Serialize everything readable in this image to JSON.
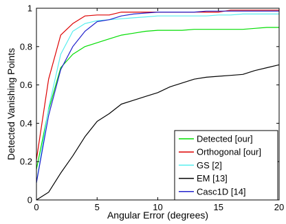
{
  "chart_data": {
    "type": "line",
    "title": "",
    "xlabel": "Angular Error (degrees)",
    "ylabel": "Detected Vanishing Points",
    "xlim": [
      0,
      20
    ],
    "ylim": [
      0,
      1
    ],
    "xticks": [
      0,
      5,
      10,
      15,
      20
    ],
    "yticks": [
      0,
      0.2,
      0.4,
      0.6,
      0.8,
      1
    ],
    "xtick_labels": [
      "0",
      "5",
      "10",
      "15",
      "20"
    ],
    "ytick_labels": [
      "0",
      "0.2",
      "0.4",
      "0.6",
      "0.8",
      "1"
    ],
    "grid": false,
    "legend_position": "bottom-right",
    "series": [
      {
        "name": "Detected [our]",
        "color": "#00dd00",
        "x": [
          0,
          1,
          2,
          3,
          4,
          5,
          6,
          7,
          8,
          9,
          10,
          11,
          12,
          13,
          14,
          15,
          16,
          17,
          18,
          19,
          20
        ],
        "y": [
          0.16,
          0.47,
          0.69,
          0.76,
          0.8,
          0.82,
          0.84,
          0.86,
          0.87,
          0.88,
          0.885,
          0.885,
          0.885,
          0.89,
          0.89,
          0.89,
          0.89,
          0.89,
          0.895,
          0.9,
          0.9
        ]
      },
      {
        "name": "Orthogonal [our]",
        "color": "#dd0000",
        "x": [
          0,
          1,
          2,
          3,
          4,
          5,
          6,
          7,
          8,
          9,
          10,
          11,
          12,
          13,
          14,
          15,
          16,
          17,
          18,
          19,
          20
        ],
        "y": [
          0.21,
          0.63,
          0.86,
          0.92,
          0.96,
          0.965,
          0.965,
          0.98,
          0.98,
          0.98,
          0.98,
          0.98,
          0.98,
          0.98,
          0.98,
          0.98,
          0.99,
          0.99,
          0.99,
          0.99,
          0.99
        ]
      },
      {
        "name": "GS [2]",
        "color": "#55eeee",
        "x": [
          0,
          1,
          2,
          3,
          4,
          5,
          6,
          7,
          8,
          9,
          10,
          11,
          12,
          13,
          14,
          15,
          16,
          17,
          18,
          19,
          20
        ],
        "y": [
          0.09,
          0.48,
          0.76,
          0.88,
          0.92,
          0.935,
          0.94,
          0.945,
          0.95,
          0.955,
          0.96,
          0.96,
          0.96,
          0.96,
          0.96,
          0.965,
          0.965,
          0.97,
          0.97,
          0.97,
          0.97
        ]
      },
      {
        "name": "EM [13]",
        "color": "#000000",
        "x": [
          0,
          1,
          2,
          3,
          4,
          5,
          6,
          7,
          8,
          9,
          10,
          11,
          12,
          13,
          14,
          15,
          16,
          17,
          18,
          19,
          20
        ],
        "y": [
          0.0,
          0.04,
          0.14,
          0.23,
          0.33,
          0.41,
          0.45,
          0.5,
          0.52,
          0.54,
          0.56,
          0.59,
          0.61,
          0.63,
          0.64,
          0.645,
          0.65,
          0.655,
          0.675,
          0.69,
          0.705
        ]
      },
      {
        "name": "Casc1D [14]",
        "color": "#2222cc",
        "x": [
          0,
          1,
          2,
          3,
          4,
          5,
          6,
          7,
          8,
          9,
          10,
          11,
          12,
          13,
          14,
          15,
          16,
          17,
          18,
          19,
          20
        ],
        "y": [
          0.09,
          0.44,
          0.68,
          0.8,
          0.88,
          0.93,
          0.94,
          0.96,
          0.97,
          0.975,
          0.98,
          0.98,
          0.98,
          0.98,
          0.985,
          0.985,
          0.985,
          0.985,
          0.985,
          0.985,
          0.985
        ]
      }
    ]
  }
}
